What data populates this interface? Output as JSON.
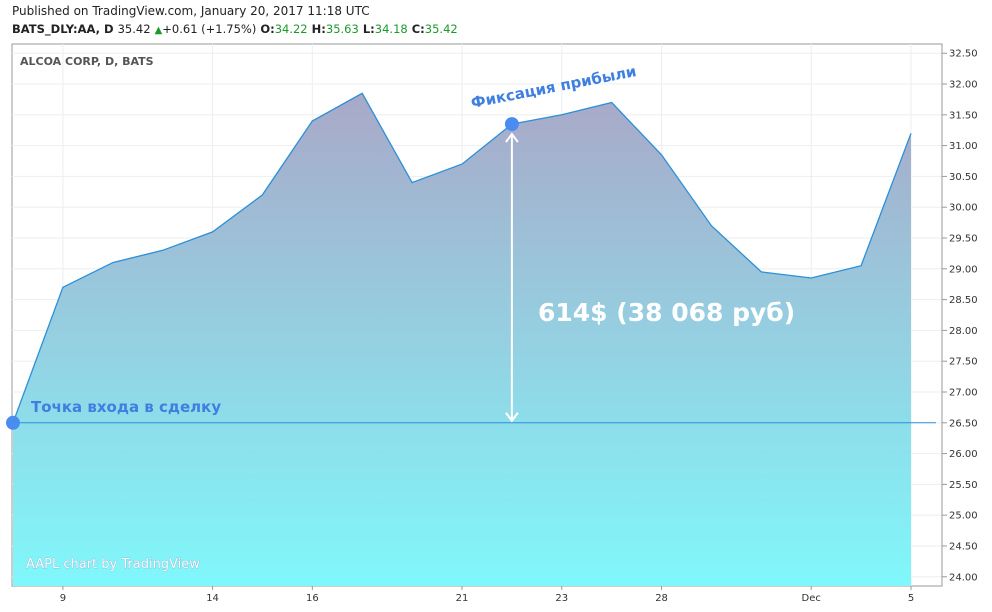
{
  "header": {
    "published": "Published on TradingView.com, January 20, 2017 11:18 UTC",
    "symbol": "BATS_DLY:AA, D",
    "price": "35.42",
    "change": "+0.61 (+1.75%)",
    "o_label": "O:",
    "o_value": "34.22",
    "h_label": "H:",
    "h_value": "35.63",
    "l_label": "L:",
    "l_value": "34.18",
    "c_label": "C:",
    "c_value": "35.42"
  },
  "chart_data": {
    "type": "area",
    "title": "ALCOA CORP, D, BATS",
    "watermark": "AAPL chart by TradingView",
    "ylim": [
      23.85,
      32.65
    ],
    "yticks": [
      "32.50",
      "32.00",
      "31.50",
      "31.00",
      "30.50",
      "30.00",
      "29.50",
      "29.00",
      "28.50",
      "28.00",
      "27.50",
      "27.00",
      "26.50",
      "26.00",
      "25.50",
      "25.00",
      "24.50",
      "24.00"
    ],
    "xticks": [
      {
        "label": "9",
        "i": 1
      },
      {
        "label": "14",
        "i": 4
      },
      {
        "label": "16",
        "i": 6
      },
      {
        "label": "21",
        "i": 9
      },
      {
        "label": "23",
        "i": 11
      },
      {
        "label": "28",
        "i": 13
      },
      {
        "label": "Dec",
        "i": 16
      },
      {
        "label": "5",
        "i": 18
      }
    ],
    "series": [
      {
        "values": [
          26.5,
          28.7,
          29.1,
          29.3,
          29.6,
          30.2,
          31.4,
          31.85,
          30.4,
          30.7,
          31.35,
          31.5,
          31.7,
          30.85,
          29.7,
          28.95,
          28.85,
          29.05,
          31.2
        ]
      }
    ],
    "entry": {
      "label": "Точка входа в сделку",
      "value": 26.5
    },
    "exit": {
      "label": "Фиксация прибыли",
      "value": 31.35,
      "i": 10
    },
    "profit_label": "614$ (38 068 руб)",
    "colors": {
      "line": "#2b8fd8",
      "fill_top": "#a9a8c8",
      "fill_bottom": "#80f8fb",
      "marker": "#4a8cf0"
    }
  }
}
